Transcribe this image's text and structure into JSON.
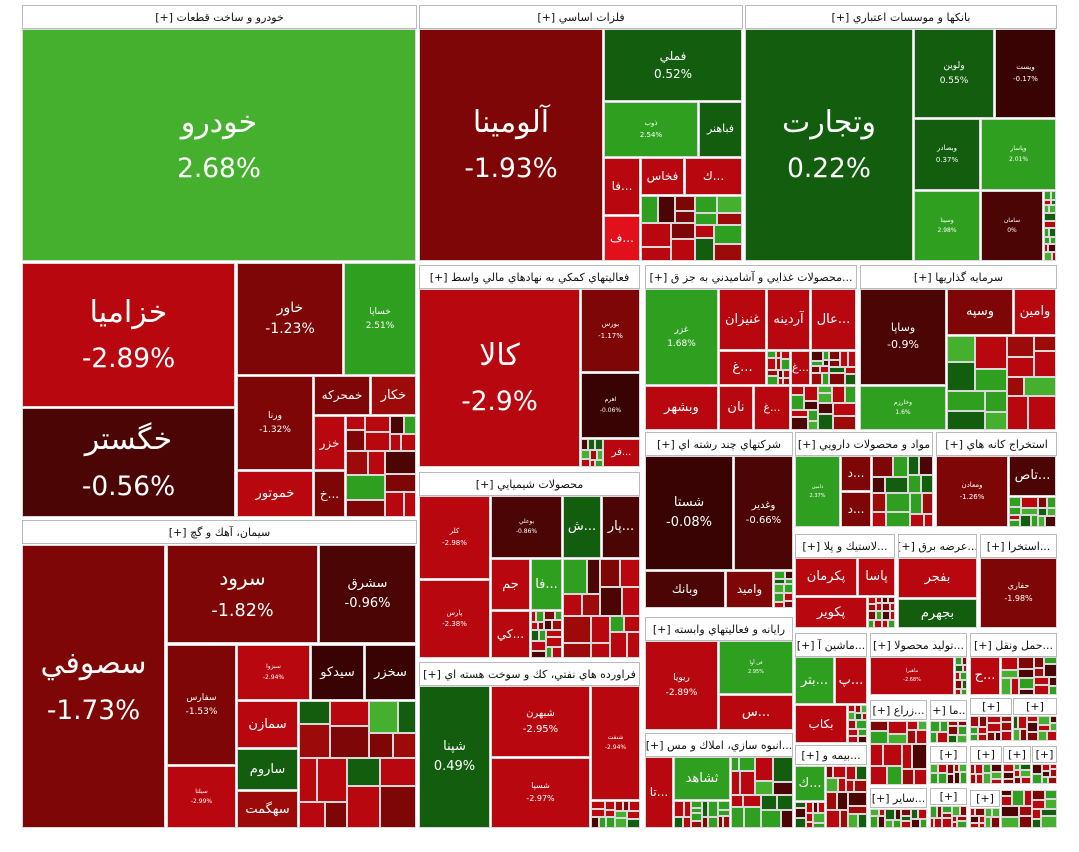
{
  "sectors": [
    {
      "title": "[+] خودرو و ساخت قطعات",
      "tiles": [
        {
          "symbol": "خودرو",
          "change": "2.68%"
        },
        {
          "symbol": "خزاميا",
          "change": "-2.89%"
        },
        {
          "symbol": "خگستر",
          "change": "-0.56%"
        },
        {
          "symbol": "خاور",
          "change": "-1.23%"
        },
        {
          "symbol": "خساپا",
          "change": "2.51%"
        },
        {
          "symbol": "ورنا",
          "change": "-1.32%"
        },
        {
          "symbol": "خمحركه"
        },
        {
          "symbol": "خكار"
        },
        {
          "symbol": "خزر"
        },
        {
          "symbol": "خموتور"
        },
        {
          "symbol": "...خ"
        }
      ]
    },
    {
      "title": "[+] سيمان، آهك و گچ",
      "tiles": [
        {
          "symbol": "سصوفي",
          "change": "-1.73%"
        },
        {
          "symbol": "سرود",
          "change": "-1.82%"
        },
        {
          "symbol": "سشرق",
          "change": "-0.96%"
        },
        {
          "symbol": "سفارس",
          "change": "-1.53%"
        },
        {
          "symbol": "سبزوا",
          "change": "-2.94%"
        },
        {
          "symbol": "سيدكو"
        },
        {
          "symbol": "سخزر"
        },
        {
          "symbol": "سمازن"
        },
        {
          "symbol": "ساروم"
        },
        {
          "symbol": "سهگمت"
        },
        {
          "symbol": "سيلتا",
          "change": "-2.99%"
        }
      ]
    },
    {
      "title": "[+] فلزات اساسي",
      "tiles": [
        {
          "symbol": "آلومينا",
          "change": "-1.93%"
        },
        {
          "symbol": "فملي",
          "change": "0.52%"
        },
        {
          "symbol": "ذوب",
          "change": "2.54%"
        },
        {
          "symbol": "فباهنر"
        },
        {
          "symbol": "فخاس"
        },
        {
          "symbol": "...ك"
        },
        {
          "symbol": "...فا"
        },
        {
          "symbol": "...ف"
        }
      ]
    },
    {
      "title": "[+] بانكها و موسسات اعتباري",
      "tiles": [
        {
          "symbol": "وتجارت",
          "change": "0.22%"
        },
        {
          "symbol": "ولوين",
          "change": "0.55%"
        },
        {
          "symbol": "ويست",
          "change": "-0.17%"
        },
        {
          "symbol": "وبصادر",
          "change": "0.37%"
        },
        {
          "symbol": "وپاسار",
          "change": "2.01%"
        },
        {
          "symbol": "وسينا",
          "change": "2.98%"
        },
        {
          "symbol": "سامان",
          "change": "0%"
        }
      ]
    },
    {
      "title": "[+] فعاليتهاي كمكي به نهادهاي مالي واسط",
      "tiles": [
        {
          "symbol": "كالا",
          "change": "-2.9%"
        },
        {
          "symbol": "بورس",
          "change": "-1.17%"
        },
        {
          "symbol": "اهرم",
          "change": "-0.06%"
        },
        {
          "symbol": "...فر"
        }
      ]
    },
    {
      "title": "[+] محصولات غذايي و آشاميدني به جز ق...",
      "tiles": [
        {
          "symbol": "غزر",
          "change": "1.68%"
        },
        {
          "symbol": "وبشهر"
        },
        {
          "symbol": "غنيزان"
        },
        {
          "symbol": "آردينه"
        },
        {
          "symbol": "...عال"
        },
        {
          "symbol": "...غ"
        },
        {
          "symbol": "...غ"
        },
        {
          "symbol": "نان"
        },
        {
          "symbol": "...غ"
        }
      ]
    },
    {
      "title": "[+] سرمايه گذاريها",
      "tiles": [
        {
          "symbol": "وساپا",
          "change": "-0.9%"
        },
        {
          "symbol": "وسپه"
        },
        {
          "symbol": "وامين"
        },
        {
          "symbol": "وخارزم",
          "change": "1.6%"
        }
      ]
    },
    {
      "title": "[+] محصولات شيميايي",
      "tiles": [
        {
          "symbol": "كلر",
          "change": "-2.98%"
        },
        {
          "symbol": "پارس",
          "change": "-2.38%"
        },
        {
          "symbol": "بوعلي",
          "change": "-0.86%"
        },
        {
          "symbol": "...ش"
        },
        {
          "symbol": "...پار"
        },
        {
          "symbol": "جم"
        },
        {
          "symbol": "...فا"
        },
        {
          "symbol": "...كي"
        }
      ]
    },
    {
      "title": "[+] شركتهاي چند رشته اي",
      "tiles": [
        {
          "symbol": "شستا",
          "change": "-0.08%"
        },
        {
          "symbol": "وغدير",
          "change": "-0.66%"
        },
        {
          "symbol": "وبانك"
        },
        {
          "symbol": "واميد"
        }
      ]
    },
    {
      "title": "[+] مواد و محصولات دارويي",
      "tiles": [
        {
          "symbol": "دامين",
          "change": "2.37%"
        },
        {
          "symbol": "...د"
        },
        {
          "symbol": "...د"
        }
      ]
    },
    {
      "title": "[+] استخراج كانه هاي",
      "tiles": [
        {
          "symbol": "ومعادن",
          "change": "-1.26%"
        },
        {
          "symbol": "...تاص"
        }
      ]
    },
    {
      "title": "[+] فراورده هاي نفتي، كك و سوخت هسته اي",
      "tiles": [
        {
          "symbol": "شپنا",
          "change": "0.49%"
        },
        {
          "symbol": "شبهرن",
          "change": "-2.95%"
        },
        {
          "symbol": "شسپا",
          "change": "-2.97%"
        },
        {
          "symbol": "شنفت",
          "change": "-2.94%"
        }
      ]
    },
    {
      "title": "[+] رايانه و فعاليتهاي وابسته",
      "tiles": [
        {
          "symbol": "ريويا",
          "change": "-2.89%"
        },
        {
          "symbol": "فن آوا",
          "change": "2.95%"
        },
        {
          "symbol": "...س"
        }
      ]
    },
    {
      "title": "[+] انبوه سازي، املاك و مس...",
      "tiles": [
        {
          "symbol": "...تا"
        },
        {
          "symbol": "ثشاهد"
        }
      ]
    },
    {
      "title": "[+] لاستيك و پلا...",
      "tiles": [
        {
          "symbol": "پكرمان"
        },
        {
          "symbol": "پاسا"
        },
        {
          "symbol": "پكوير"
        }
      ]
    },
    {
      "title": "[+] عرضه برق...",
      "tiles": [
        {
          "symbol": "بفجر"
        },
        {
          "symbol": "بجهرم"
        }
      ]
    },
    {
      "title": "[+] استخرا...",
      "tiles": [
        {
          "symbol": "حفاري",
          "change": "-1.98%"
        }
      ]
    },
    {
      "title": "[+] ماشين آ...",
      "tiles": [
        {
          "symbol": "...بتر"
        },
        {
          "symbol": "...پ"
        },
        {
          "symbol": "بكاب"
        }
      ]
    },
    {
      "title": "[+] توليد محصولا...",
      "tiles": [
        {
          "symbol": "ماهيرا",
          "change": "-2.68%"
        }
      ]
    },
    {
      "title": "[+] حمل ونقل...",
      "tiles": [
        {
          "symbol": "...ح"
        }
      ]
    },
    {
      "title": "[+] بيمه و...",
      "tiles": [
        {
          "symbol": "...ك"
        }
      ]
    },
    {
      "title": "[+] زراع...",
      "tiles": []
    },
    {
      "title": "[+] ما...",
      "tiles": []
    },
    {
      "title": "[+] ساير...",
      "tiles": []
    },
    {
      "title": "[+]",
      "tiles": []
    },
    {
      "title": "[+]",
      "tiles": []
    },
    {
      "title": "[+]",
      "tiles": []
    },
    {
      "title": "[+]",
      "tiles": []
    },
    {
      "title": "[+]",
      "tiles": []
    },
    {
      "title": "[+]",
      "tiles": []
    },
    {
      "title": "[+]",
      "tiles": []
    },
    {
      "title": "[+]",
      "tiles": []
    }
  ]
}
